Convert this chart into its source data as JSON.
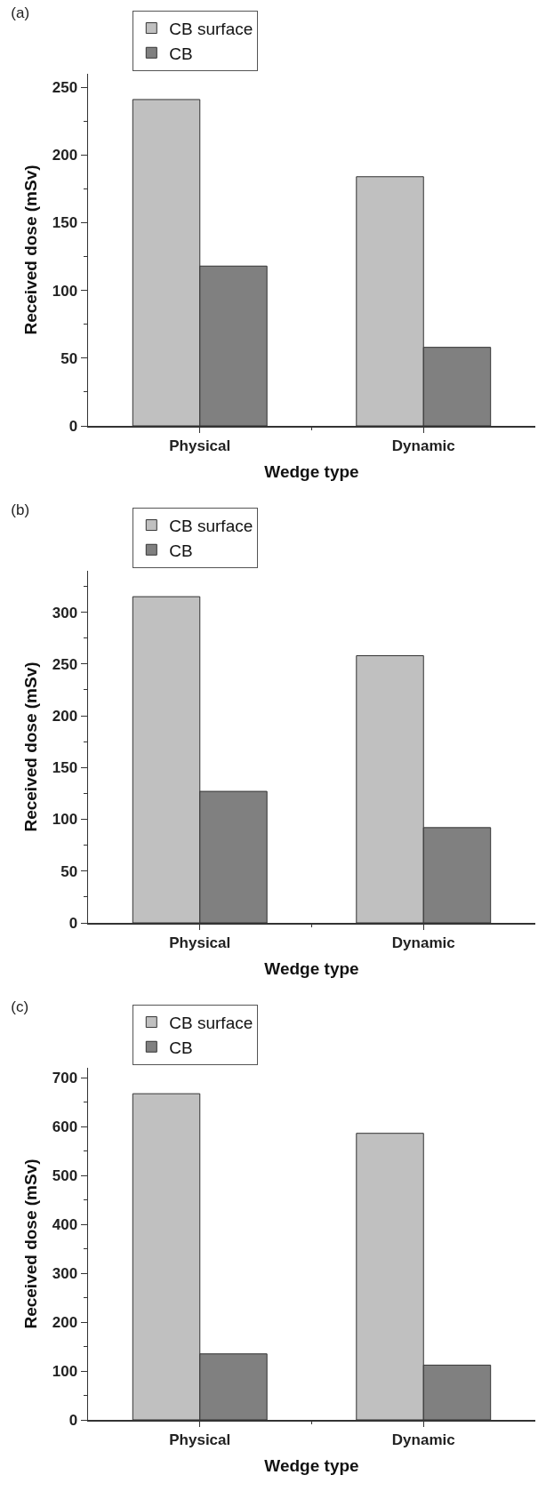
{
  "chart_data": [
    {
      "type": "bar",
      "title": "(a)",
      "xlabel": "Wedge type",
      "ylabel": "Received dose (mSv)",
      "categories": [
        "Physical",
        "Dynamic"
      ],
      "series": [
        {
          "name": "CB surface",
          "color": "#c0c0c0",
          "values": [
            241,
            184
          ]
        },
        {
          "name": "CB",
          "color": "#808080",
          "values": [
            118,
            58
          ]
        }
      ],
      "ylim": [
        0,
        260
      ],
      "yticks": [
        0,
        50,
        100,
        150,
        200,
        250
      ],
      "grid": false,
      "legend": "top left"
    },
    {
      "type": "bar",
      "title": "(b)",
      "xlabel": "Wedge type",
      "ylabel": "Received dose (mSv)",
      "categories": [
        "Physical",
        "Dynamic"
      ],
      "series": [
        {
          "name": "CB surface",
          "color": "#c0c0c0",
          "values": [
            315,
            258
          ]
        },
        {
          "name": "CB",
          "color": "#808080",
          "values": [
            127,
            92
          ]
        }
      ],
      "ylim": [
        0,
        340
      ],
      "yticks": [
        0,
        50,
        100,
        150,
        200,
        250,
        300
      ],
      "grid": false,
      "legend": "top left"
    },
    {
      "type": "bar",
      "title": "(c)",
      "xlabel": "Wedge type",
      "ylabel": "Received dose (mSv)",
      "categories": [
        "Physical",
        "Dynamic"
      ],
      "series": [
        {
          "name": "CB surface",
          "color": "#c0c0c0",
          "values": [
            667,
            586
          ]
        },
        {
          "name": "CB",
          "color": "#808080",
          "values": [
            135,
            112
          ]
        }
      ],
      "ylim": [
        0,
        720
      ],
      "yticks": [
        0,
        100,
        200,
        300,
        400,
        500,
        600,
        700
      ],
      "grid": false,
      "legend": "top left"
    }
  ]
}
